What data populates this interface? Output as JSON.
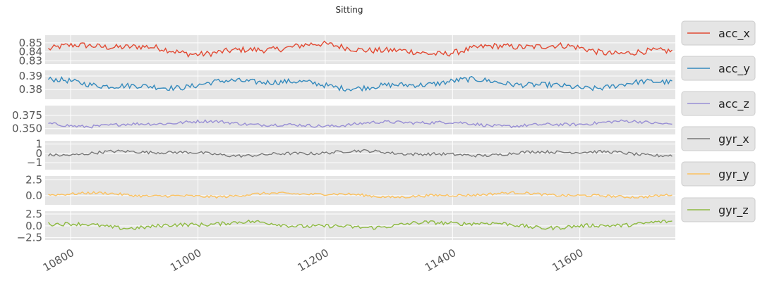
{
  "chart_data": {
    "type": "line",
    "title": "Sitting",
    "xlabel": "",
    "x_range": [
      10760,
      11750
    ],
    "x_ticks": [
      10800,
      11000,
      11200,
      11400,
      11600
    ],
    "x_tick_labels": [
      "10800",
      "11000",
      "11200",
      "11400",
      "11600"
    ],
    "grid": true,
    "legend_position": "right",
    "series": [
      {
        "name": "acc_x",
        "color": "#E24A33",
        "ylim": [
          0.8265,
          0.8585
        ],
        "y_ticks": [
          0.83,
          0.84,
          0.85
        ],
        "y_tick_labels": [
          "0.83",
          "0.84",
          "0.85"
        ],
        "base": 0.843,
        "amplitude": 0.0075,
        "range": [
          0.829,
          0.856
        ]
      },
      {
        "name": "acc_y",
        "color": "#348ABD",
        "ylim": [
          0.3727,
          0.3942
        ],
        "y_ticks": [
          0.38,
          0.39
        ],
        "y_tick_labels": [
          "0.38",
          "0.39"
        ],
        "base": 0.384,
        "amplitude": 0.0045,
        "range": [
          0.375,
          0.3925
        ]
      },
      {
        "name": "acc_z",
        "color": "#988ED5",
        "ylim": [
          0.339,
          0.3935
        ],
        "y_ticks": [
          0.35,
          0.375
        ],
        "y_tick_labels": [
          "0.350",
          "0.375"
        ],
        "base": 0.359,
        "amplitude": 0.0065,
        "range": [
          0.342,
          0.392
        ]
      },
      {
        "name": "gyr_x",
        "color": "#777777",
        "ylim": [
          -1.75,
          1.35
        ],
        "y_ticks": [
          -1,
          0,
          1
        ],
        "y_tick_labels": [
          "−1",
          "0",
          "1"
        ],
        "base": 0.0,
        "amplitude": 0.35,
        "range": [
          -1.6,
          1.2
        ]
      },
      {
        "name": "gyr_y",
        "color": "#FBC15E",
        "ylim": [
          -1.45,
          3.1
        ],
        "y_ticks": [
          0.0,
          2.5
        ],
        "y_tick_labels": [
          "0.0",
          "2.5"
        ],
        "base": 0.1,
        "amplitude": 0.45,
        "range": [
          -1.1,
          2.3
        ]
      },
      {
        "name": "gyr_z",
        "color": "#8EBA42",
        "ylim": [
          -3.0,
          3.1
        ],
        "y_ticks": [
          -2.5,
          0.0,
          2.5
        ],
        "y_tick_labels": [
          "−2.5",
          "0.0",
          "2.5"
        ],
        "base": 0.2,
        "amplitude": 0.9,
        "range": [
          -2.2,
          2.6
        ]
      }
    ]
  }
}
